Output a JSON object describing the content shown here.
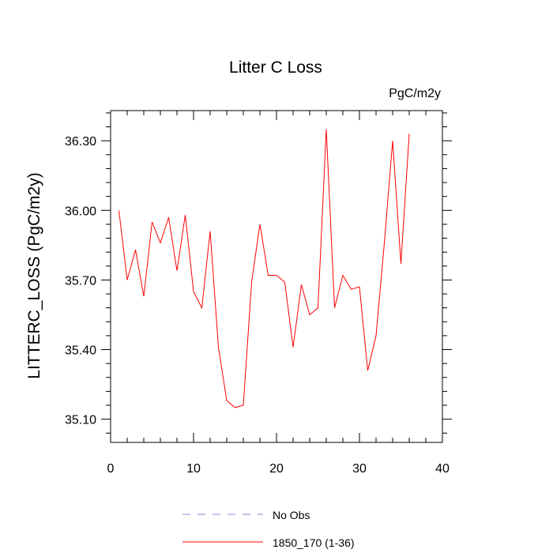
{
  "chart_data": {
    "type": "line",
    "title": "Litter C Loss",
    "units_label": "PgC/m2y",
    "ylabel": "LITTERC_LOSS  (PgC/m2y)",
    "xlabel": "",
    "xlim": [
      0,
      40
    ],
    "ylim": [
      35.0,
      36.43
    ],
    "x_ticks": [
      0,
      10,
      20,
      30,
      40
    ],
    "y_ticks": [
      35.1,
      35.4,
      35.7,
      36.0,
      36.3
    ],
    "y_tick_labels": [
      "35.10",
      "35.40",
      "35.70",
      "36.00",
      "36.30"
    ],
    "x_tick_labels": [
      "0",
      "10",
      "20",
      "30",
      "40"
    ],
    "grid": false,
    "legend_position": "bottom",
    "legend": [
      {
        "name": "No Obs",
        "color": "#8a8ae6",
        "dash": true
      },
      {
        "name": "1850_170 (1-36)",
        "color": "#ff0000",
        "dash": false
      }
    ],
    "series": [
      {
        "name": "1850_170 (1-36)",
        "color": "#ff0000",
        "x": [
          1,
          2,
          3,
          4,
          5,
          6,
          7,
          8,
          9,
          10,
          11,
          12,
          13,
          14,
          15,
          16,
          17,
          18,
          19,
          20,
          21,
          22,
          23,
          24,
          25,
          26,
          27,
          28,
          29,
          30,
          31,
          32,
          33,
          34,
          35,
          36
        ],
        "values": [
          36.0,
          35.7,
          35.83,
          35.63,
          35.95,
          35.86,
          35.97,
          35.74,
          35.98,
          35.65,
          35.58,
          35.91,
          35.41,
          35.18,
          35.15,
          35.16,
          35.69,
          35.94,
          35.72,
          35.72,
          35.69,
          35.41,
          35.68,
          35.55,
          35.58,
          36.35,
          35.58,
          35.72,
          35.66,
          35.67,
          35.31,
          35.46,
          35.86,
          36.3,
          35.77,
          36.33
        ]
      }
    ]
  }
}
